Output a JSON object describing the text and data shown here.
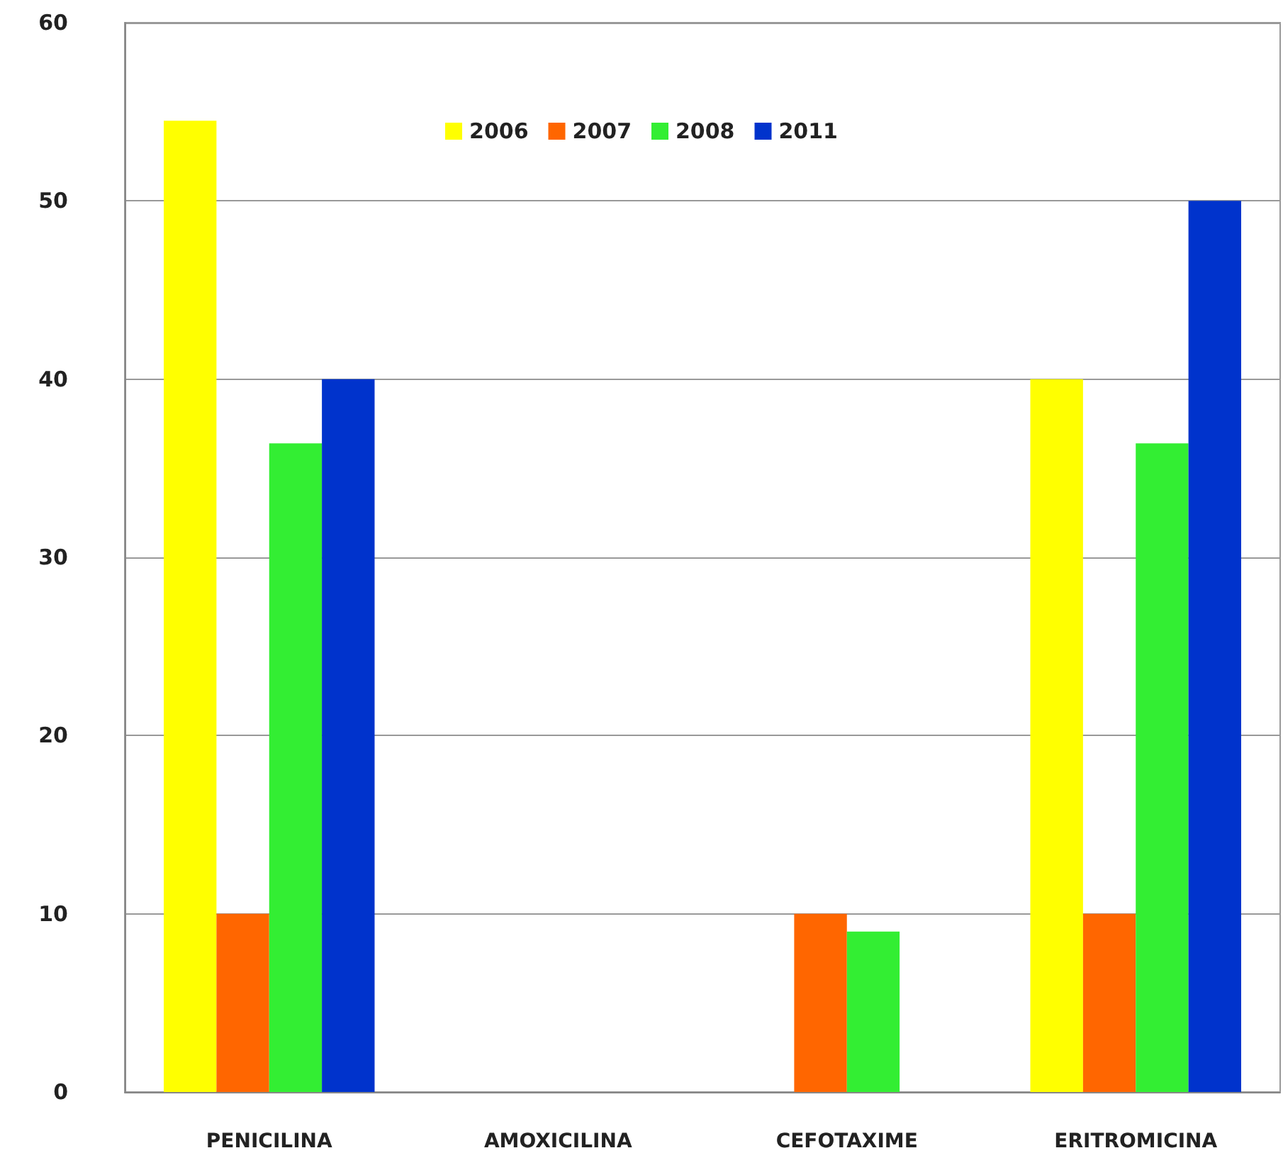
{
  "chart_data": {
    "type": "bar",
    "categories": [
      "PENICILINA",
      "AMOXICILINA",
      "CEFOTAXIME",
      "ERITROMICINA"
    ],
    "series": [
      {
        "name": "2006",
        "color": "#ffff00",
        "values": [
          54.5,
          0,
          0,
          40
        ]
      },
      {
        "name": "2007",
        "color": "#ff6600",
        "values": [
          10,
          0,
          10,
          10
        ]
      },
      {
        "name": "2008",
        "color": "#33ee33",
        "values": [
          36.4,
          0,
          9,
          36.4
        ]
      },
      {
        "name": "2011",
        "color": "#0033cc",
        "values": [
          40,
          0,
          0,
          50
        ]
      }
    ],
    "ylim": [
      0,
      60
    ],
    "yticks": [
      0,
      10,
      20,
      30,
      40,
      50,
      60
    ],
    "grid": "y",
    "legend": "top"
  }
}
